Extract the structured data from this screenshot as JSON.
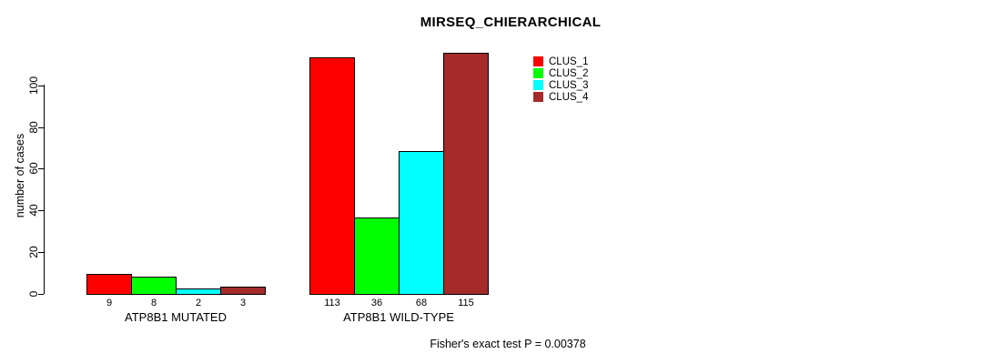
{
  "title": "MIRSEQ_CHIERARCHICAL",
  "footer": "Fisher's exact test P = 0.00378",
  "chart_data": {
    "type": "bar",
    "title": "MIRSEQ_CHIERARCHICAL",
    "xlabel": "",
    "ylabel": "number of cases",
    "categories": [
      "ATP8B1 MUTATED",
      "ATP8B1 WILD-TYPE"
    ],
    "series": [
      {
        "name": "CLUS_1",
        "color": "#FF0000",
        "values": [
          9,
          113
        ]
      },
      {
        "name": "CLUS_2",
        "color": "#00FF00",
        "values": [
          8,
          36
        ]
      },
      {
        "name": "CLUS_3",
        "color": "#00FFFF",
        "values": [
          2,
          68
        ]
      },
      {
        "name": "CLUS_4",
        "color": "#A52A2A",
        "values": [
          3,
          115
        ]
      }
    ],
    "bar_value_labels": [
      [
        "9",
        "8",
        "2",
        "3"
      ],
      [
        "113",
        "36",
        "68",
        "115"
      ]
    ],
    "yticks": [
      0,
      20,
      40,
      60,
      80,
      100
    ],
    "ylim": [
      0,
      116
    ],
    "grid": false,
    "legend_position": "top-right",
    "legend_entries": [
      {
        "label": "CLUS_1",
        "color": "#FF0000"
      },
      {
        "label": "CLUS_2",
        "color": "#00FF00"
      },
      {
        "label": "CLUS_3",
        "color": "#00FFFF"
      },
      {
        "label": "CLUS_4",
        "color": "#A52A2A"
      }
    ],
    "annotation": "Fisher's exact test P = 0.00378"
  }
}
